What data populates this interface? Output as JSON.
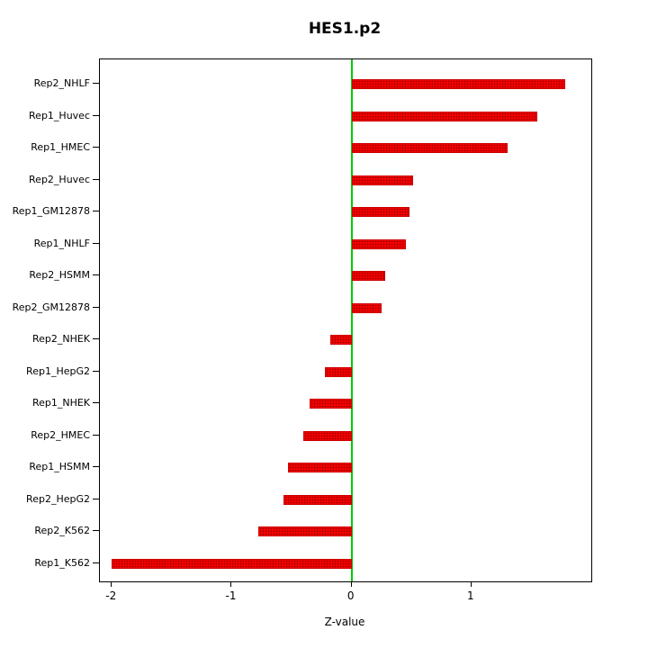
{
  "chart_data": {
    "type": "bar",
    "orientation": "horizontal",
    "title": "HES1.p2",
    "xlabel": "Z-value",
    "ylabel": "",
    "xlim": [
      -2.1,
      2.0
    ],
    "x_ticks": [
      -2,
      -1,
      0,
      1
    ],
    "grid": false,
    "legend": "none",
    "categories": [
      "Rep2_NHLF",
      "Rep1_Huvec",
      "Rep1_HMEC",
      "Rep2_Huvec",
      "Rep1_GM12878",
      "Rep1_NHLF",
      "Rep2_HSMM",
      "Rep2_GM12878",
      "Rep2_NHEK",
      "Rep1_HepG2",
      "Rep1_NHEK",
      "Rep2_HMEC",
      "Rep1_HSMM",
      "Rep2_HepG2",
      "Rep2_K562",
      "Rep1_K562"
    ],
    "values": [
      1.78,
      1.55,
      1.3,
      0.51,
      0.48,
      0.45,
      0.28,
      0.25,
      -0.18,
      -0.22,
      -0.35,
      -0.4,
      -0.53,
      -0.57,
      -0.78,
      -2.0
    ],
    "bar_color": "#ff0000",
    "zero_line_color": "#00cc00"
  }
}
